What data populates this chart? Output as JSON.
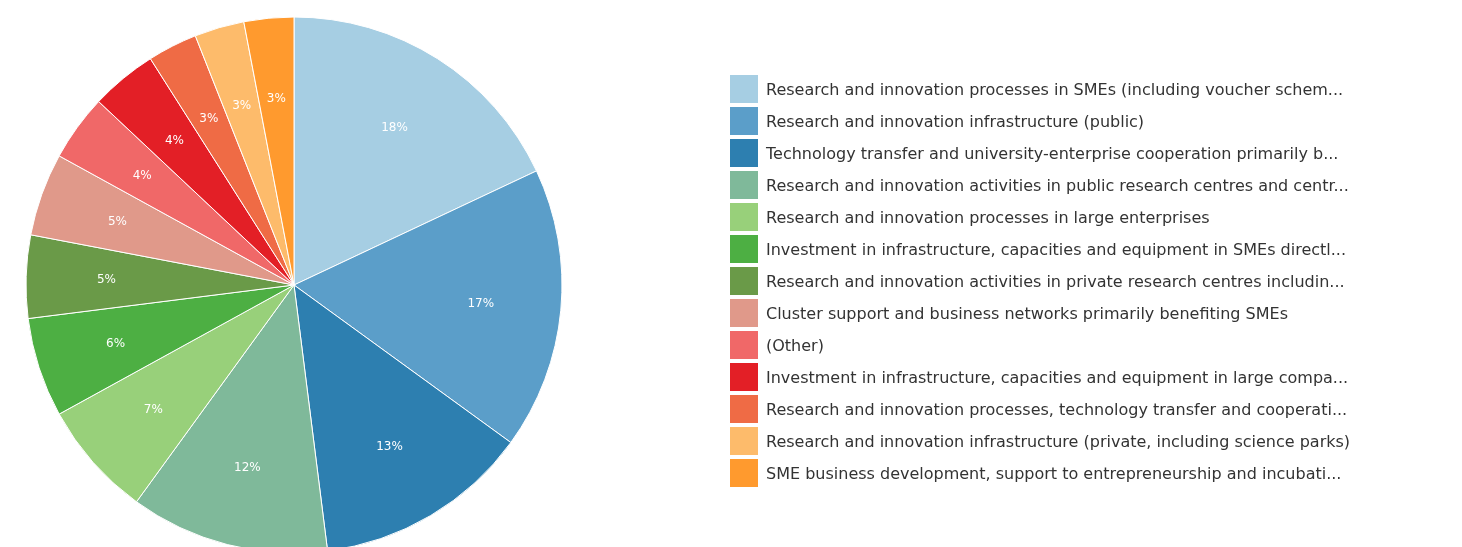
{
  "chart_data": {
    "type": "pie",
    "categories": [
      "Research and innovation processes in SMEs (including voucher schem...",
      "Research and innovation infrastructure (public)",
      "Technology transfer and university-enterprise cooperation primarily b...",
      "Research and innovation activities in public research centres and centr...",
      "Research and innovation processes in large enterprises",
      "Investment in infrastructure, capacities and equipment in SMEs directl...",
      "Research and innovation activities in private research centres includin...",
      "Cluster support and business networks primarily benefiting SMEs",
      "(Other)",
      "Investment in infrastructure, capacities and equipment in large compa...",
      "Research and innovation processes, technology transfer and cooperati...",
      "Research and innovation infrastructure (private, including science parks)",
      "SME business development, support to entrepreneurship and incubati..."
    ],
    "values": [
      18,
      17,
      13,
      12,
      7,
      6,
      5,
      5,
      4,
      4,
      3,
      3,
      3
    ],
    "value_labels": [
      "18%",
      "17%",
      "13%",
      "12%",
      "7%",
      "6%",
      "5%",
      "5%",
      "4%",
      "4%",
      "3%",
      "3%",
      "3%"
    ],
    "colors": [
      "#a6cee3",
      "#5b9ec9",
      "#2d7fb0",
      "#7fb99a",
      "#98d07a",
      "#4daf43",
      "#6a9a48",
      "#e0998a",
      "#f06868",
      "#e31f26",
      "#ef6b45",
      "#fdbb6b",
      "#ff9a2e"
    ],
    "legend": "right"
  }
}
